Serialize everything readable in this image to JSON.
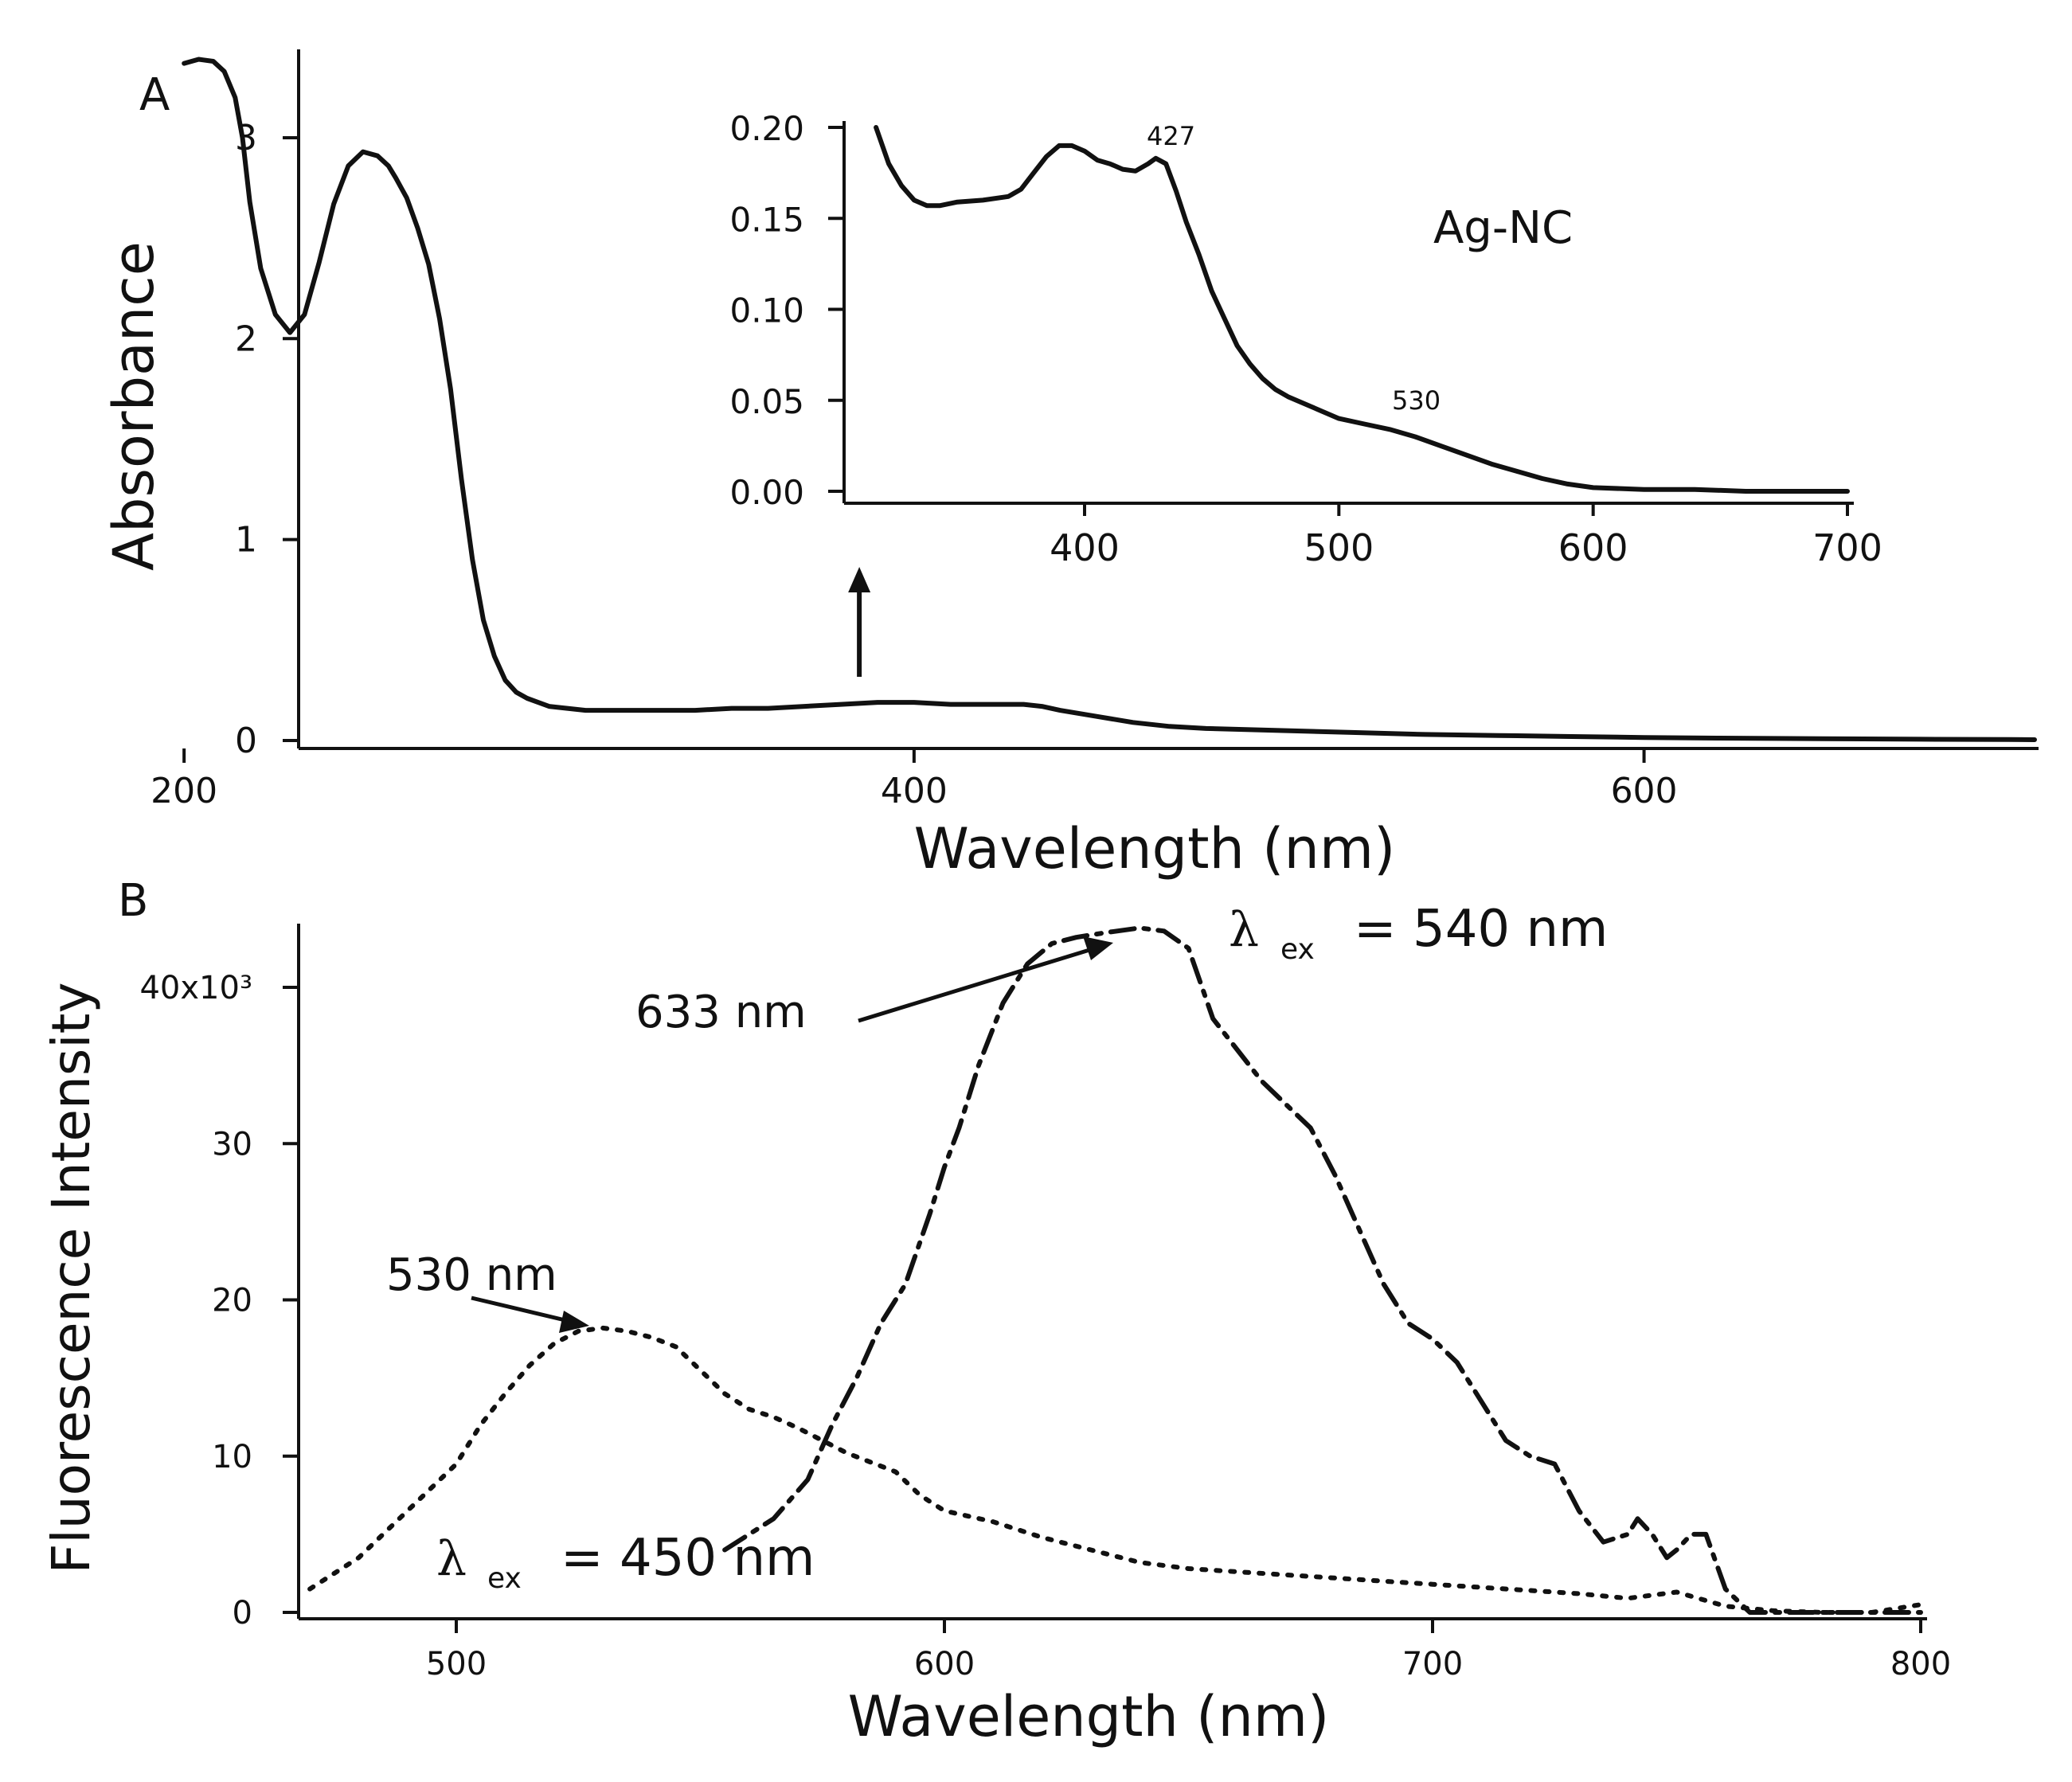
{
  "chart_data": [
    {
      "type": "line",
      "panel_label": "A",
      "xlabel": "Wavelength (nm)",
      "ylabel": "Absorbance",
      "xlim": [
        198,
        707
      ],
      "ylim": [
        0,
        3.4
      ],
      "x_ticks": [
        "200",
        "400",
        "600"
      ],
      "y_ticks": [
        "0",
        "1",
        "2",
        "3"
      ],
      "grid": false,
      "series": [
        {
          "style": "solid",
          "x": [
            200,
            204,
            208,
            211,
            214,
            216,
            218,
            221,
            225,
            229,
            233,
            237,
            241,
            245,
            249,
            253,
            256,
            258,
            261,
            264,
            267,
            270,
            273,
            276,
            279,
            282,
            285,
            288,
            291,
            294,
            297,
            300,
            305,
            310,
            315,
            320,
            330,
            340,
            350,
            360,
            370,
            380,
            390,
            400,
            410,
            420,
            430,
            435,
            440,
            450,
            460,
            470,
            480,
            500,
            520,
            540,
            560,
            580,
            600,
            620,
            640,
            660,
            680,
            700,
            707
          ],
          "y": [
            3.37,
            3.39,
            3.38,
            3.33,
            3.2,
            3.0,
            2.68,
            2.35,
            2.12,
            2.03,
            2.12,
            2.38,
            2.67,
            2.86,
            2.93,
            2.91,
            2.86,
            2.8,
            2.7,
            2.55,
            2.37,
            2.1,
            1.75,
            1.3,
            0.9,
            0.6,
            0.42,
            0.3,
            0.24,
            0.21,
            0.19,
            0.17,
            0.16,
            0.15,
            0.15,
            0.15,
            0.15,
            0.15,
            0.16,
            0.16,
            0.17,
            0.18,
            0.19,
            0.19,
            0.18,
            0.18,
            0.18,
            0.17,
            0.15,
            0.12,
            0.09,
            0.07,
            0.06,
            0.05,
            0.04,
            0.03,
            0.025,
            0.02,
            0.015,
            0.012,
            0.01,
            0.008,
            0.006,
            0.005,
            0.004
          ]
        }
      ],
      "annotations": [
        {
          "type": "arrow",
          "x": 385
        }
      ],
      "inset": {
        "type": "line",
        "title": "Ag-NC",
        "xlim": [
          310,
          705
        ],
        "ylim": [
          -0.005,
          0.2
        ],
        "x_ticks": [
          "400",
          "500",
          "600",
          "700"
        ],
        "y_ticks": [
          "0.00",
          "0.05",
          "0.10",
          "0.15",
          "0.20"
        ],
        "annotations": [
          {
            "text": "427",
            "x": 427,
            "y": 0.183
          },
          {
            "text": "530",
            "x": 530,
            "y": 0.03
          }
        ],
        "series": [
          {
            "style": "solid",
            "x": [
              318,
              323,
              328,
              333,
              338,
              343,
              350,
              360,
              370,
              375,
              380,
              385,
              390,
              395,
              400,
              405,
              410,
              415,
              420,
              425,
              428,
              432,
              436,
              440,
              445,
              450,
              455,
              460,
              465,
              470,
              475,
              480,
              490,
              500,
              510,
              520,
              530,
              540,
              550,
              560,
              570,
              580,
              590,
              600,
              620,
              640,
              660,
              680,
              700
            ],
            "y": [
              0.2,
              0.18,
              0.168,
              0.16,
              0.157,
              0.157,
              0.159,
              0.16,
              0.162,
              0.166,
              0.175,
              0.184,
              0.19,
              0.19,
              0.187,
              0.182,
              0.18,
              0.177,
              0.176,
              0.18,
              0.183,
              0.18,
              0.165,
              0.148,
              0.13,
              0.11,
              0.095,
              0.08,
              0.07,
              0.062,
              0.056,
              0.052,
              0.046,
              0.04,
              0.037,
              0.034,
              0.03,
              0.025,
              0.02,
              0.015,
              0.011,
              0.007,
              0.004,
              0.002,
              0.001,
              0.001,
              0.0,
              0.0,
              0.0
            ]
          }
        ]
      }
    },
    {
      "type": "line",
      "panel_label": "B",
      "xlabel": "Wavelength (nm)",
      "ylabel": "Fluorescence Intensity",
      "xlim": [
        470,
        805
      ],
      "ylim": [
        0,
        44500
      ],
      "x_ticks": [
        "500",
        "600",
        "700",
        "800"
      ],
      "y_ticks": [
        "0",
        "10",
        "20",
        "30",
        "40x10³"
      ],
      "grid": false,
      "series": [
        {
          "name": "λ ex = 450 nm",
          "style": "dotted",
          "x": [
            470,
            480,
            490,
            500,
            505,
            510,
            515,
            520,
            525,
            530,
            535,
            540,
            545,
            550,
            555,
            560,
            565,
            570,
            580,
            590,
            595,
            600,
            610,
            620,
            630,
            640,
            650,
            660,
            670,
            680,
            690,
            700,
            710,
            720,
            730,
            740,
            750,
            760,
            770,
            780,
            790,
            800
          ],
          "y": [
            1500,
            3500,
            6500,
            9500,
            12000,
            14000,
            15800,
            17200,
            18000,
            18200,
            18000,
            17600,
            17000,
            15500,
            14000,
            13000,
            12500,
            11800,
            10200,
            9000,
            7500,
            6500,
            5800,
            4800,
            4000,
            3200,
            2800,
            2600,
            2400,
            2200,
            2000,
            1800,
            1600,
            1400,
            1200,
            900,
            1300,
            400,
            100,
            0,
            0,
            500
          ]
        },
        {
          "name": "λ ex = 540 nm",
          "style": "dashdot",
          "x": [
            555,
            565,
            572,
            577,
            582,
            587,
            592,
            597,
            600,
            603,
            607,
            612,
            617,
            622,
            627,
            633,
            640,
            645,
            650,
            655,
            660,
            665,
            670,
            675,
            680,
            685,
            690,
            695,
            700,
            705,
            710,
            715,
            720,
            725,
            730,
            735,
            740,
            742,
            745,
            748,
            750,
            753,
            756,
            760,
            765,
            770,
            780,
            790,
            800
          ],
          "y": [
            4000,
            6000,
            8500,
            12000,
            15000,
            18500,
            21000,
            25500,
            28500,
            31000,
            35000,
            39000,
            41500,
            42800,
            43200,
            43500,
            43800,
            43600,
            42500,
            38000,
            36000,
            34000,
            32500,
            31000,
            28000,
            24500,
            21000,
            18500,
            17500,
            16000,
            13500,
            11000,
            10000,
            9500,
            6500,
            4500,
            5000,
            6000,
            5000,
            3500,
            4000,
            5000,
            5000,
            1500,
            0,
            0,
            0,
            0,
            0
          ]
        }
      ],
      "annotations": [
        {
          "text": "633 nm",
          "x": 633,
          "y": 43200
        },
        {
          "text": "530 nm",
          "x": 530,
          "y": 18200
        },
        {
          "text": "540 nm",
          "label_prefix": "λ",
          "label_sub": "ex",
          "label_main": "= 540 nm"
        },
        {
          "text": "450 nm",
          "label_prefix": "λ",
          "label_sub": "ex",
          "label_main": "= 450 nm"
        }
      ]
    }
  ]
}
